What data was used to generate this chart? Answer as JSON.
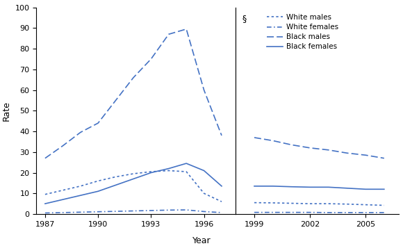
{
  "years_left": [
    1987,
    1988,
    1989,
    1990,
    1991,
    1992,
    1993,
    1994,
    1995,
    1996,
    1997
  ],
  "years_right": [
    1999,
    2000,
    2001,
    2002,
    2003,
    2004,
    2005,
    2006
  ],
  "white_males_left": [
    9.5,
    11.5,
    13.5,
    16.0,
    18.0,
    19.5,
    20.5,
    21.0,
    20.5,
    10.0,
    6.0
  ],
  "white_females_left": [
    0.5,
    0.7,
    0.9,
    1.1,
    1.3,
    1.5,
    1.7,
    1.9,
    2.0,
    1.2,
    0.7
  ],
  "black_males_left": [
    27.0,
    33.0,
    39.5,
    44.0,
    55.0,
    66.0,
    75.0,
    87.0,
    89.5,
    60.0,
    38.0
  ],
  "black_females_left": [
    5.0,
    7.0,
    9.0,
    11.0,
    14.0,
    17.0,
    20.0,
    22.0,
    24.5,
    21.0,
    13.5
  ],
  "white_males_right": [
    5.5,
    5.4,
    5.2,
    5.0,
    5.0,
    4.8,
    4.5,
    4.2
  ],
  "white_females_right": [
    0.8,
    0.8,
    0.8,
    0.8,
    0.7,
    0.7,
    0.7,
    0.7
  ],
  "black_males_right": [
    37.0,
    35.5,
    33.5,
    32.0,
    31.0,
    29.5,
    28.5,
    27.0
  ],
  "black_females_right": [
    13.5,
    13.5,
    13.2,
    13.0,
    13.0,
    12.5,
    12.0,
    12.0
  ],
  "color": "#4472C4",
  "ylim": [
    0,
    100
  ],
  "yticks": [
    0,
    10,
    20,
    30,
    40,
    50,
    60,
    70,
    80,
    90,
    100
  ],
  "xticks_left": [
    1987,
    1990,
    1993,
    1996
  ],
  "xticks_right": [
    1999,
    2002,
    2005
  ],
  "ylabel": "Rate",
  "xlabel": "Year",
  "legend_labels": [
    "White males",
    "White females",
    "Black males",
    "Black females"
  ],
  "section_symbol": "§"
}
